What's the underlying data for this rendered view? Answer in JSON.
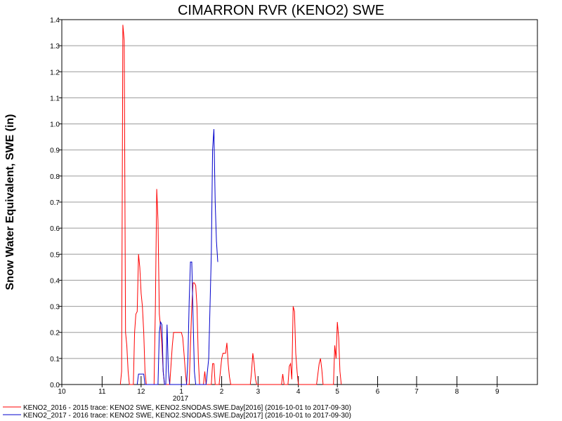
{
  "chart_data": {
    "type": "line",
    "title": "CIMARRON RVR (KENO2) SWE",
    "xlabel": "",
    "ylabel": "Snow Water Equivalent, SWE (in)",
    "ylim": [
      0,
      1.4
    ],
    "xlim": [
      "2016-10-01",
      "2017-09-30"
    ],
    "y_ticks": [
      "0.0",
      "0.1",
      "0.2",
      "0.3",
      "0.4",
      "0.5",
      "0.6",
      "0.7",
      "0.8",
      "0.9",
      "1.0",
      "1.1",
      "1.2",
      "1.3",
      "1.4"
    ],
    "x_ticks": [
      {
        "label": "10",
        "date": "2016-10-01"
      },
      {
        "label": "11",
        "date": "2016-11-01"
      },
      {
        "label": "12",
        "date": "2016-12-01"
      },
      {
        "label": "1",
        "date": "2017-01-01"
      },
      {
        "label": "2",
        "date": "2017-02-01"
      },
      {
        "label": "3",
        "date": "2017-03-01"
      },
      {
        "label": "4",
        "date": "2017-04-01"
      },
      {
        "label": "5",
        "date": "2017-05-01"
      },
      {
        "label": "6",
        "date": "2017-06-01"
      },
      {
        "label": "7",
        "date": "2017-07-01"
      },
      {
        "label": "8",
        "date": "2017-08-01"
      },
      {
        "label": "9",
        "date": "2017-09-01"
      }
    ],
    "year_label": "2017",
    "grid": true,
    "legend_position": "bottom-left",
    "series": [
      {
        "name": "KENO2_2016 - 2015 trace: KENO2 SWE, KENO2.SNODAS.SWE.Day[2016] (2016-10-01 to 2017-09-30)",
        "color": "#ff0000",
        "points": [
          [
            "2016-11-15",
            0
          ],
          [
            "2016-11-16",
            0.05
          ],
          [
            "2016-11-17",
            1.38
          ],
          [
            "2016-11-18",
            1.32
          ],
          [
            "2016-11-19",
            0.2
          ],
          [
            "2016-11-20",
            0.15
          ],
          [
            "2016-11-21",
            0.05
          ],
          [
            "2016-11-22",
            0
          ],
          [
            "2016-11-25",
            0
          ],
          [
            "2016-11-26",
            0.2
          ],
          [
            "2016-11-27",
            0.27
          ],
          [
            "2016-11-28",
            0.28
          ],
          [
            "2016-11-29",
            0.5
          ],
          [
            "2016-11-30",
            0.45
          ],
          [
            "2016-12-01",
            0.35
          ],
          [
            "2016-12-02",
            0.3
          ],
          [
            "2016-12-03",
            0.2
          ],
          [
            "2016-12-04",
            0.05
          ],
          [
            "2016-12-05",
            0
          ],
          [
            "2016-12-11",
            0
          ],
          [
            "2016-12-12",
            0.3
          ],
          [
            "2016-12-13",
            0.75
          ],
          [
            "2016-12-14",
            0.63
          ],
          [
            "2016-12-15",
            0.27
          ],
          [
            "2016-12-16",
            0.22
          ],
          [
            "2016-12-17",
            0.15
          ],
          [
            "2016-12-18",
            0.05
          ],
          [
            "2016-12-19",
            0
          ],
          [
            "2016-12-23",
            0
          ],
          [
            "2016-12-25",
            0.15
          ],
          [
            "2016-12-26",
            0.2
          ],
          [
            "2016-12-27",
            0.2
          ],
          [
            "2016-12-28",
            0.2
          ],
          [
            "2016-12-29",
            0.2
          ],
          [
            "2016-12-30",
            0.2
          ],
          [
            "2016-12-31",
            0.2
          ],
          [
            "2017-01-01",
            0.2
          ],
          [
            "2017-01-02",
            0.18
          ],
          [
            "2017-01-03",
            0.12
          ],
          [
            "2017-01-04",
            0.05
          ],
          [
            "2017-01-05",
            0
          ],
          [
            "2017-01-07",
            0
          ],
          [
            "2017-01-08",
            0.15
          ],
          [
            "2017-01-09",
            0.3
          ],
          [
            "2017-01-10",
            0.39
          ],
          [
            "2017-01-11",
            0.39
          ],
          [
            "2017-01-12",
            0.38
          ],
          [
            "2017-01-13",
            0.3
          ],
          [
            "2017-01-14",
            0.1
          ],
          [
            "2017-01-15",
            0
          ],
          [
            "2017-01-18",
            0
          ],
          [
            "2017-01-19",
            0.05
          ],
          [
            "2017-01-20",
            0
          ],
          [
            "2017-01-24",
            0
          ],
          [
            "2017-01-25",
            0.08
          ],
          [
            "2017-01-26",
            0.08
          ],
          [
            "2017-01-27",
            0
          ],
          [
            "2017-01-30",
            0
          ],
          [
            "2017-01-31",
            0.05
          ],
          [
            "2017-02-01",
            0.1
          ],
          [
            "2017-02-02",
            0.12
          ],
          [
            "2017-02-03",
            0.12
          ],
          [
            "2017-02-04",
            0.12
          ],
          [
            "2017-02-05",
            0.16
          ],
          [
            "2017-02-06",
            0.08
          ],
          [
            "2017-02-07",
            0.03
          ],
          [
            "2017-02-08",
            0
          ],
          [
            "2017-02-23",
            0
          ],
          [
            "2017-02-24",
            0.05
          ],
          [
            "2017-02-25",
            0.12
          ],
          [
            "2017-02-26",
            0.08
          ],
          [
            "2017-02-27",
            0.02
          ],
          [
            "2017-02-28",
            0
          ],
          [
            "2017-03-19",
            0
          ],
          [
            "2017-03-20",
            0.04
          ],
          [
            "2017-03-21",
            0
          ],
          [
            "2017-03-24",
            0
          ],
          [
            "2017-03-25",
            0.07
          ],
          [
            "2017-03-26",
            0.08
          ],
          [
            "2017-03-27",
            0.02
          ],
          [
            "2017-03-28",
            0.3
          ],
          [
            "2017-03-29",
            0.28
          ],
          [
            "2017-03-30",
            0.12
          ],
          [
            "2017-03-31",
            0.05
          ],
          [
            "2017-04-01",
            0
          ],
          [
            "2017-04-15",
            0
          ],
          [
            "2017-04-16",
            0.04
          ],
          [
            "2017-04-17",
            0.08
          ],
          [
            "2017-04-18",
            0.1
          ],
          [
            "2017-04-19",
            0.06
          ],
          [
            "2017-04-20",
            0
          ],
          [
            "2017-04-28",
            0
          ],
          [
            "2017-04-29",
            0.15
          ],
          [
            "2017-04-30",
            0.1
          ],
          [
            "2017-05-01",
            0.24
          ],
          [
            "2017-05-02",
            0.18
          ],
          [
            "2017-05-03",
            0.05
          ],
          [
            "2017-05-04",
            0
          ]
        ]
      },
      {
        "name": "KENO2_2017 - 2016 trace: KENO2 SWE, KENO2.SNODAS.SWE.Day[2017] (2016-10-01 to 2017-09-30)",
        "color": "#0000cc",
        "points": [
          [
            "2016-11-28",
            0
          ],
          [
            "2016-11-29",
            0.04
          ],
          [
            "2016-11-30",
            0.04
          ],
          [
            "2016-12-01",
            0.04
          ],
          [
            "2016-12-02",
            0.04
          ],
          [
            "2016-12-03",
            0.04
          ],
          [
            "2016-12-04",
            0
          ],
          [
            "2016-12-14",
            0
          ],
          [
            "2016-12-15",
            0.2
          ],
          [
            "2016-12-16",
            0.24
          ],
          [
            "2016-12-17",
            0.23
          ],
          [
            "2016-12-18",
            0.05
          ],
          [
            "2016-12-19",
            0
          ],
          [
            "2016-12-20",
            0
          ],
          [
            "2016-12-21",
            0.23
          ],
          [
            "2016-12-22",
            0.05
          ],
          [
            "2016-12-23",
            0
          ],
          [
            "2017-01-05",
            0
          ],
          [
            "2017-01-06",
            0.1
          ],
          [
            "2017-01-07",
            0.32
          ],
          [
            "2017-01-08",
            0.47
          ],
          [
            "2017-01-09",
            0.47
          ],
          [
            "2017-01-10",
            0.25
          ],
          [
            "2017-01-11",
            0.05
          ],
          [
            "2017-01-12",
            0
          ],
          [
            "2017-01-20",
            0
          ],
          [
            "2017-01-22",
            0.1
          ],
          [
            "2017-01-24",
            0.5
          ],
          [
            "2017-01-25",
            0.9
          ],
          [
            "2017-01-26",
            0.98
          ],
          [
            "2017-01-27",
            0.7
          ],
          [
            "2017-01-28",
            0.55
          ],
          [
            "2017-01-29",
            0.47
          ]
        ]
      }
    ]
  }
}
